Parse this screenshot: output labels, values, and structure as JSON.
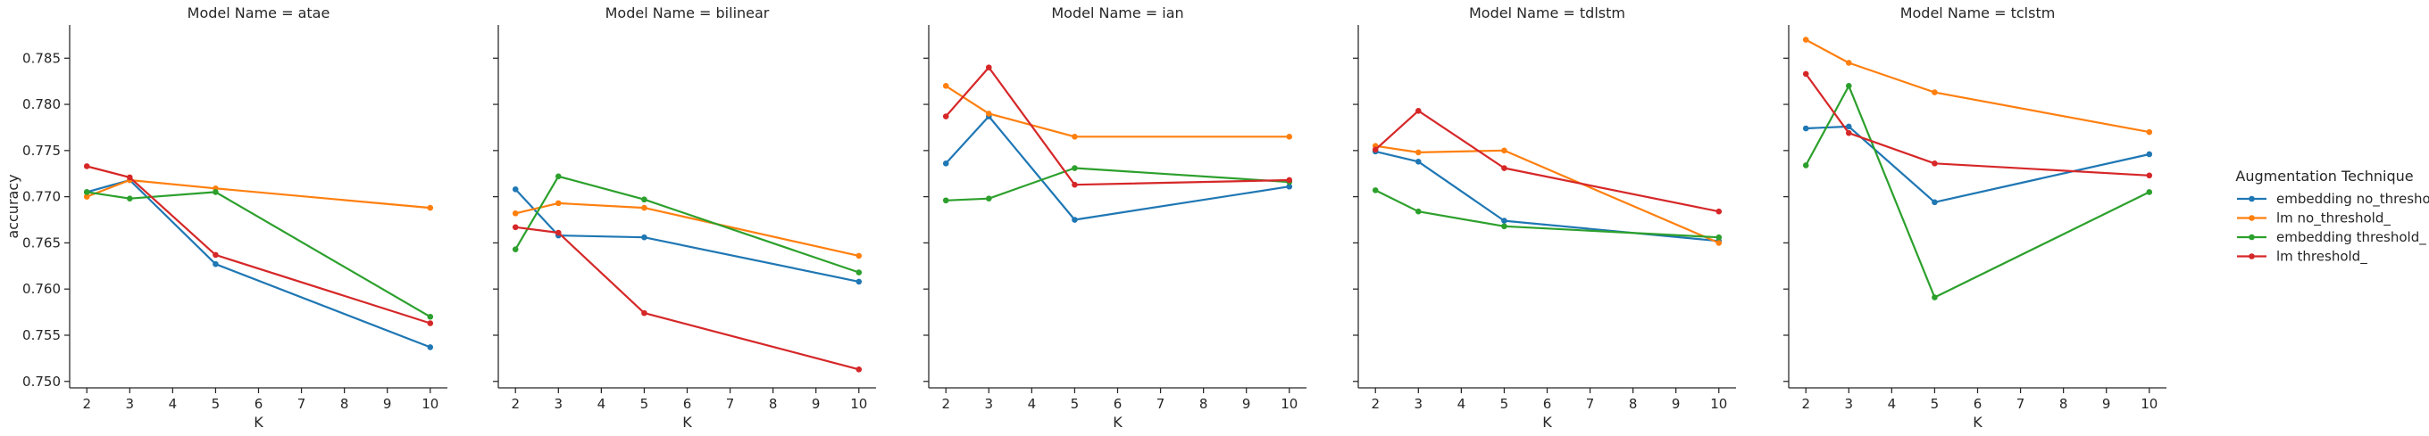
{
  "chart_data": {
    "type": "line",
    "ylabel": "accuracy",
    "xlabel": "K",
    "x": [
      2,
      3,
      5,
      10
    ],
    "xticks": [
      2,
      3,
      4,
      5,
      6,
      7,
      8,
      9,
      10
    ],
    "yticks": [
      0.75,
      0.755,
      0.76,
      0.765,
      0.77,
      0.775,
      0.78,
      0.785
    ],
    "ytick_labels": [
      "0.750",
      "0.755",
      "0.760",
      "0.765",
      "0.770",
      "0.775",
      "0.780",
      "0.785"
    ],
    "xlim": [
      1.6,
      10.4
    ],
    "ylim": [
      0.7493,
      0.7886
    ],
    "shared_y": true,
    "grid": false,
    "legend": {
      "title": "Augmentation Technique",
      "placement": "right",
      "entries": [
        "embedding no_threshold_",
        "lm no_threshold_",
        "embedding threshold_",
        "lm threshold_"
      ]
    },
    "colors": {
      "embedding no_threshold_": "#1f77b4",
      "lm no_threshold_": "#ff7f0e",
      "embedding threshold_": "#2ca02c",
      "lm threshold_": "#d62728"
    },
    "panels": [
      {
        "title": "Model Name = atae",
        "series": [
          {
            "name": "embedding no_threshold_",
            "values": [
              0.7705,
              0.7718,
              0.7627,
              0.7537
            ]
          },
          {
            "name": "lm no_threshold_",
            "values": [
              0.77,
              0.7718,
              0.7709,
              0.7688
            ]
          },
          {
            "name": "embedding threshold_",
            "values": [
              0.7705,
              0.7698,
              0.7705,
              0.757
            ]
          },
          {
            "name": "lm threshold_",
            "values": [
              0.7733,
              0.7721,
              0.7637,
              0.7563
            ]
          }
        ]
      },
      {
        "title": "Model Name = bilinear",
        "series": [
          {
            "name": "embedding no_threshold_",
            "values": [
              0.7708,
              0.7658,
              0.7656,
              0.7608
            ]
          },
          {
            "name": "lm no_threshold_",
            "values": [
              0.7682,
              0.7693,
              0.7688,
              0.7636
            ]
          },
          {
            "name": "embedding threshold_",
            "values": [
              0.7643,
              0.7722,
              0.7697,
              0.7618
            ]
          },
          {
            "name": "lm threshold_",
            "values": [
              0.7667,
              0.7661,
              0.7574,
              0.7513
            ]
          }
        ]
      },
      {
        "title": "Model Name = ian",
        "series": [
          {
            "name": "embedding no_threshold_",
            "values": [
              0.7736,
              0.7787,
              0.7675,
              0.7711
            ]
          },
          {
            "name": "lm no_threshold_",
            "values": [
              0.782,
              0.779,
              0.7765,
              0.7765
            ]
          },
          {
            "name": "embedding threshold_",
            "values": [
              0.7696,
              0.7698,
              0.7731,
              0.7716
            ]
          },
          {
            "name": "lm threshold_",
            "values": [
              0.7787,
              0.784,
              0.7713,
              0.7718
            ]
          }
        ]
      },
      {
        "title": "Model Name = tdlstm",
        "series": [
          {
            "name": "embedding no_threshold_",
            "values": [
              0.7749,
              0.7738,
              0.7674,
              0.7652
            ]
          },
          {
            "name": "lm no_threshold_",
            "values": [
              0.7755,
              0.7748,
              0.775,
              0.765
            ]
          },
          {
            "name": "embedding threshold_",
            "values": [
              0.7707,
              0.7684,
              0.7668,
              0.7656
            ]
          },
          {
            "name": "lm threshold_",
            "values": [
              0.7751,
              0.7793,
              0.7731,
              0.7684
            ]
          }
        ]
      },
      {
        "title": "Model Name = tclstm",
        "series": [
          {
            "name": "embedding no_threshold_",
            "values": [
              0.7774,
              0.7776,
              0.7694,
              0.7746
            ]
          },
          {
            "name": "lm no_threshold_",
            "values": [
              0.787,
              0.7845,
              0.7813,
              0.777
            ]
          },
          {
            "name": "embedding threshold_",
            "values": [
              0.7734,
              0.782,
              0.7591,
              0.7705
            ]
          },
          {
            "name": "lm threshold_",
            "values": [
              0.7833,
              0.7769,
              0.7736,
              0.7723
            ]
          }
        ]
      }
    ]
  }
}
